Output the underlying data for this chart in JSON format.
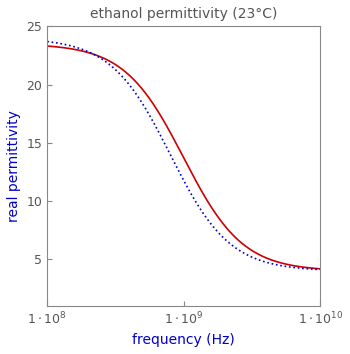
{
  "title": "ethanol permittivity (23°C)",
  "xlabel": "frequency (Hz)",
  "ylabel": "real permittivity",
  "xmin": 100000000.0,
  "xmax": 10000000000.0,
  "ymin": 1,
  "ymax": 25,
  "yticks": [
    5,
    10,
    15,
    20,
    25
  ],
  "eps_inf_red": 4.0,
  "eps_s_red": 23.5,
  "tau_red": 1.6e-10,
  "eps_inf_blue": 4.0,
  "eps_s_blue": 24.0,
  "tau_blue": 2e-10,
  "line_color_red": "#cc0000",
  "line_color_blue": "#0000cc",
  "background_color": "#ffffff",
  "title_color": "#555555",
  "label_color": "#0000cc",
  "tick_label_color": "#555555",
  "title_fontsize": 10,
  "label_fontsize": 10,
  "tick_fontsize": 9
}
